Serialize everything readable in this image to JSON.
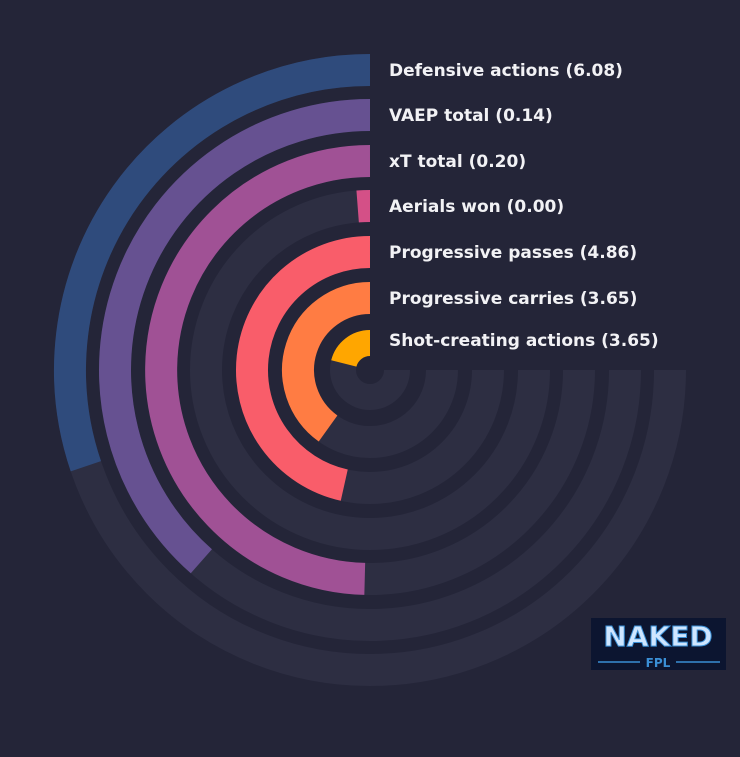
{
  "chart_data": {
    "type": "radial-bar",
    "title": "",
    "max_value": 8,
    "track_color": "#2d2e42",
    "bars": [
      {
        "label": "Defensive actions (6.08)",
        "value": 6.08,
        "color": "#2f4b7c"
      },
      {
        "label": "VAEP total (0.14)",
        "value": 0.14,
        "color": "#665191"
      },
      {
        "label": "xT total (0.20)",
        "value": 0.2,
        "color": "#a05195"
      },
      {
        "label": "Aerials won (0.00)",
        "value": 0.0,
        "color": "#d45087"
      },
      {
        "label": "Progressive passes (4.86)",
        "value": 4.86,
        "color": "#f95d6a"
      },
      {
        "label": "Progressive carries (3.65)",
        "value": 3.65,
        "color": "#ff7c43"
      },
      {
        "label": "Shot-creating actions (3.65)",
        "value": 3.65,
        "color": "#ffa600"
      }
    ],
    "sweep_fractions": [
      0.302,
      0.385,
      0.496,
      0.012,
      0.465,
      0.401,
      0.211
    ]
  },
  "logo": {
    "line1": "NAKED",
    "line2": "FPL"
  }
}
